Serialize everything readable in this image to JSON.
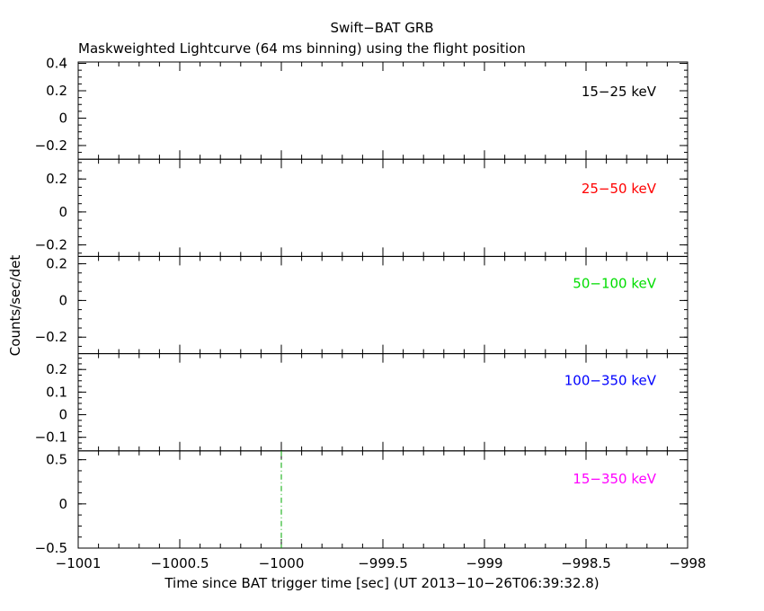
{
  "chart_data": {
    "type": "line",
    "title": "Swift−BAT GRB",
    "subtitle": "Maskweighted Lightcurve (64 ms binning) using the flight position",
    "xlabel": "Time since BAT trigger time [sec] (UT 2013−10−26T06:39:32.8)",
    "ylabel": "Counts/sec/det",
    "xlim": [
      -1001,
      -998
    ],
    "x_ticks": [
      -1001,
      -1000.5,
      -1000,
      -999.5,
      -999,
      -998.5,
      -998
    ],
    "x_tick_labels": [
      "−1001",
      "−1000.5",
      "−1000",
      "−999.5",
      "−999",
      "−998.5",
      "−998"
    ],
    "grid": false,
    "panels": [
      {
        "band": "15−25 keV",
        "color": "#000000",
        "ylim": [
          -0.3,
          0.41
        ],
        "y_ticks": [
          -0.2,
          0,
          0.2,
          0.4
        ],
        "y_tick_labels": [
          "−0.2",
          "0",
          "0.2",
          "0.4"
        ]
      },
      {
        "band": "25−50 keV",
        "color": "#ff0000",
        "ylim": [
          -0.27,
          0.32
        ],
        "y_ticks": [
          -0.2,
          0,
          0.2
        ],
        "y_tick_labels": [
          "−0.2",
          "0",
          "0.2"
        ]
      },
      {
        "band": "50−100 keV",
        "color": "#00dd00",
        "ylim": [
          -0.29,
          0.24
        ],
        "y_ticks": [
          -0.2,
          0,
          0.2
        ],
        "y_tick_labels": [
          "−0.2",
          "0",
          "0.2"
        ]
      },
      {
        "band": "100−350 keV",
        "color": "#0000ff",
        "ylim": [
          -0.16,
          0.27
        ],
        "y_ticks": [
          -0.1,
          0,
          0.1,
          0.2
        ],
        "y_tick_labels": [
          "−0.1",
          "0",
          "0.1",
          "0.2"
        ]
      },
      {
        "band": "15−350 keV",
        "color": "#ff00ff",
        "ylim": [
          -0.5,
          0.6
        ],
        "y_ticks": [
          -0.5,
          0,
          0.5
        ],
        "y_tick_labels": [
          "−0.5",
          "0",
          "0.5"
        ],
        "markers": [
          {
            "x": -1000,
            "color": "#00aa00",
            "style": "dash-dot"
          }
        ]
      }
    ]
  }
}
